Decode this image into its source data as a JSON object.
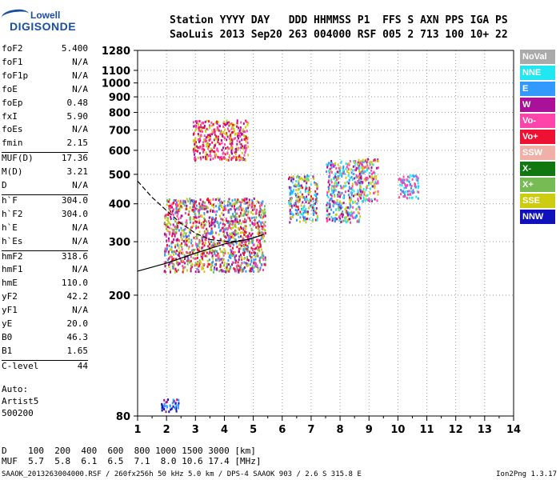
{
  "logo": {
    "line1": "Lowell",
    "line2": "DIGISONDE"
  },
  "header": {
    "line1": "Station YYYY DAY   DDD HHMMSS P1  FFS S AXN PPS IGA PS",
    "line2": "SaoLuis 2013 Sep20 263 004000 RSF 005 2 713 100 10+ 22"
  },
  "params": [
    {
      "name": "foF2",
      "value": "5.400"
    },
    {
      "name": "foF1",
      "value": "N/A"
    },
    {
      "name": "foF1p",
      "value": "N/A"
    },
    {
      "name": "foE",
      "value": "N/A"
    },
    {
      "name": "foEp",
      "value": "0.48"
    },
    {
      "name": "fxI",
      "value": "5.90"
    },
    {
      "name": "foEs",
      "value": "N/A"
    },
    {
      "name": "fmin",
      "value": "2.15"
    },
    {
      "name": "MUF(D)",
      "value": "17.36"
    },
    {
      "name": "M(D)",
      "value": "3.21"
    },
    {
      "name": "D",
      "value": "N/A"
    },
    {
      "name": "h`F",
      "value": "304.0"
    },
    {
      "name": "h`F2",
      "value": "304.0"
    },
    {
      "name": "h`E",
      "value": "N/A"
    },
    {
      "name": "h`Es",
      "value": "N/A"
    },
    {
      "name": "hmF2",
      "value": "318.6"
    },
    {
      "name": "hmF1",
      "value": "N/A"
    },
    {
      "name": "hmE",
      "value": "110.0"
    },
    {
      "name": "yF2",
      "value": "42.2"
    },
    {
      "name": "yF1",
      "value": "N/A"
    },
    {
      "name": "yE",
      "value": "20.0"
    },
    {
      "name": "B0",
      "value": "46.3"
    },
    {
      "name": "B1",
      "value": "1.65"
    },
    {
      "name": "C-level",
      "value": "44"
    }
  ],
  "auto": {
    "label": "Auto:",
    "artist": "Artist5",
    "version": "500200"
  },
  "muf_table": {
    "d_label": "D",
    "d_values": "100  200  400  600  800 1000 1500 3000 [km]",
    "muf_label": "MUF",
    "muf_values": "5.7  5.8  6.1  6.5  7.1  8.0 10.6 17.4 [MHz]"
  },
  "footer": {
    "left": "SAAOK_2013263004000.RSF / 260fx256h 50 kHz 5.0 km / DPS-4 SAAOK 903 / 2.6 S 315.8 E",
    "right": "Ion2Png 1.3.17"
  },
  "legend": [
    {
      "label": "NoVal",
      "color": "#aaaaaa",
      "text": "#ffffff"
    },
    {
      "label": "NNE",
      "color": "#22e6f0",
      "text": "#ffffff"
    },
    {
      "label": "E",
      "color": "#3399ff",
      "text": "#ffffff"
    },
    {
      "label": "W",
      "color": "#aa1199",
      "text": "#ffffff"
    },
    {
      "label": "Vo-",
      "color": "#ff44aa",
      "text": "#ffffff"
    },
    {
      "label": "Vo+",
      "color": "#ee1133",
      "text": "#ffffff"
    },
    {
      "label": "SSW",
      "color": "#f0b0a8",
      "text": "#ffffff"
    },
    {
      "label": "X-",
      "color": "#117711",
      "text": "#ffffff"
    },
    {
      "label": "X+",
      "color": "#77bb55",
      "text": "#ffffff"
    },
    {
      "label": "SSE",
      "color": "#cccc11",
      "text": "#ffffff"
    },
    {
      "label": "NNW",
      "color": "#1111bb",
      "text": "#ffffff"
    }
  ],
  "chart_data": {
    "type": "scatter",
    "title": "",
    "xlabel": "",
    "ylabel": "",
    "x_ticks": [
      1,
      2,
      3,
      4,
      5,
      6,
      7,
      8,
      9,
      10,
      11,
      12,
      13,
      14
    ],
    "y_ticks": [
      80,
      200,
      300,
      400,
      500,
      600,
      700,
      800,
      900,
      1000,
      1100,
      1280
    ],
    "xlim": [
      1,
      14
    ],
    "ylim": [
      80,
      1280
    ],
    "y_scale": "log",
    "grid": true,
    "legend_position": "right",
    "echo_regions": [
      {
        "name": "F-trace",
        "xmin": 1.9,
        "xmax": 5.4,
        "ymin": 240,
        "ymax": 420,
        "color_mix": [
          "Vo+",
          "W",
          "Vo-",
          "E",
          "X+",
          "SSE"
        ]
      },
      {
        "name": "multi-hop",
        "xmin": 2.9,
        "xmax": 4.8,
        "ymin": 560,
        "ymax": 760,
        "color_mix": [
          "W",
          "Vo+",
          "Vo-",
          "SSE"
        ]
      },
      {
        "name": "low-echo",
        "xmin": 1.8,
        "xmax": 2.4,
        "ymin": 83,
        "ymax": 92,
        "color_mix": [
          "NNW",
          "W",
          "E"
        ]
      },
      {
        "name": "spread-F-1",
        "xmin": 6.2,
        "xmax": 7.2,
        "ymin": 350,
        "ymax": 500,
        "color_mix": [
          "E",
          "NNE",
          "Vo+",
          "W",
          "SSE"
        ]
      },
      {
        "name": "spread-F-2",
        "xmin": 7.5,
        "xmax": 8.7,
        "ymin": 350,
        "ymax": 560,
        "color_mix": [
          "NNE",
          "E",
          "W",
          "Vo-",
          "SSE"
        ]
      },
      {
        "name": "spread-F-3",
        "xmin": 8.6,
        "xmax": 9.3,
        "ymin": 410,
        "ymax": 570,
        "color_mix": [
          "W",
          "Vo-",
          "SSE",
          "NNE"
        ]
      },
      {
        "name": "spread-F-4",
        "xmin": 10.0,
        "xmax": 10.7,
        "ymin": 420,
        "ymax": 500,
        "color_mix": [
          "E",
          "NNE",
          "Vo-"
        ]
      }
    ],
    "curves": [
      {
        "name": "O-profile",
        "points": [
          [
            1.0,
            240
          ],
          [
            2.0,
            255
          ],
          [
            3.0,
            275
          ],
          [
            4.0,
            295
          ],
          [
            4.8,
            305
          ],
          [
            5.3,
            315
          ]
        ]
      },
      {
        "name": "X-profile",
        "points": [
          [
            1.0,
            475
          ],
          [
            1.5,
            420
          ],
          [
            2.0,
            380
          ],
          [
            2.5,
            345
          ],
          [
            3.0,
            320
          ],
          [
            3.5,
            305
          ],
          [
            4.2,
            300
          ],
          [
            4.8,
            305
          ],
          [
            5.4,
            318
          ]
        ]
      }
    ]
  }
}
